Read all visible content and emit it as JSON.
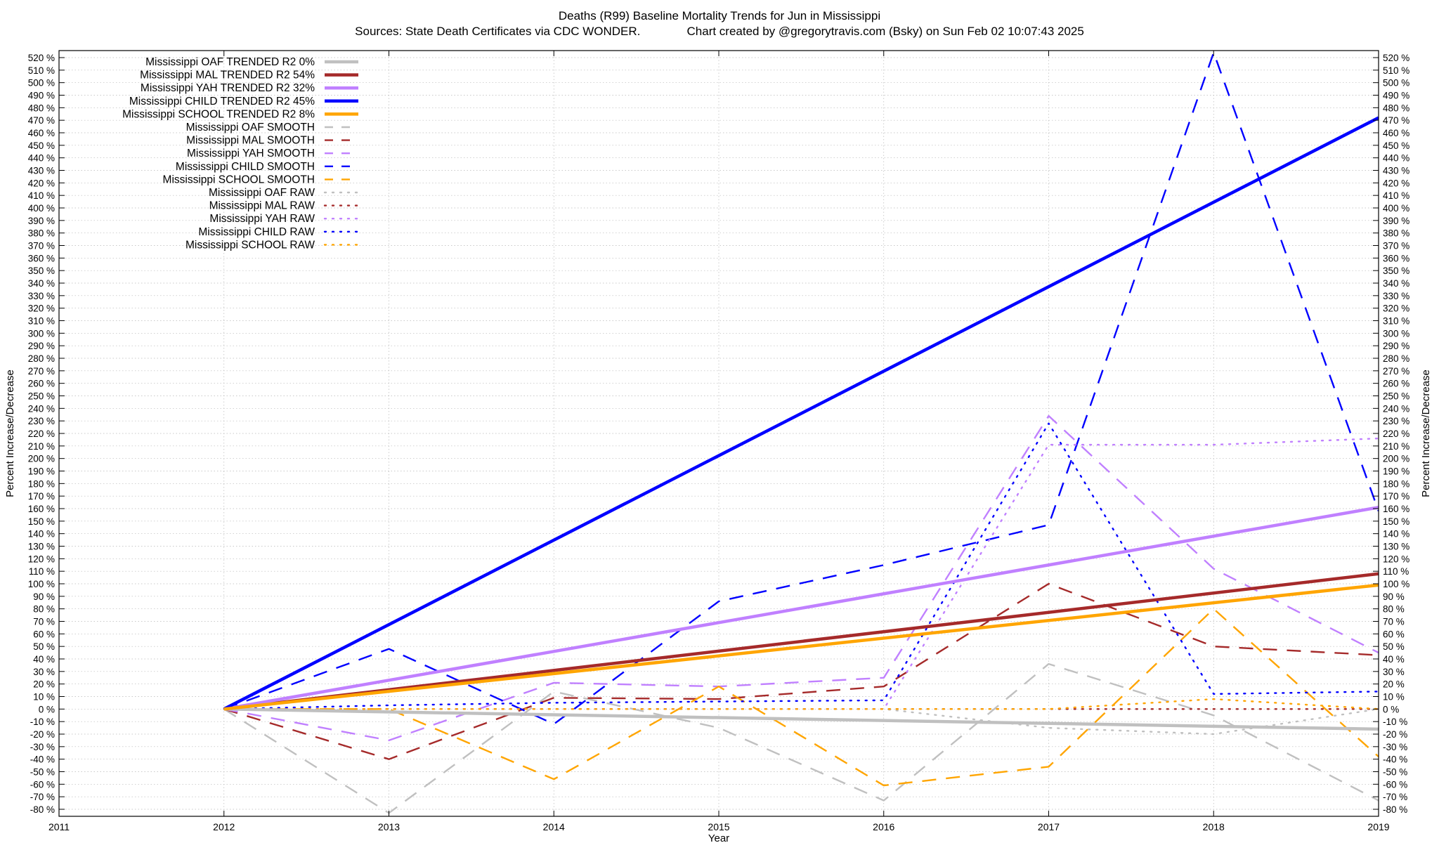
{
  "chart_data": {
    "type": "line",
    "title": "Deaths (R99)  Baseline Mortality Trends for Jun in Mississippi",
    "subtitle": "Sources: State Death Certificates via CDC WONDER.              Chart created by @gregorytravis.com (Bsky) on Sun Feb 02 10:07:43 2025",
    "xlabel": "Year",
    "ylabel": "Percent Increase/Decrease",
    "ylabel_right": "Percent Increase/Decrease",
    "xlim": [
      2011,
      2019
    ],
    "ylim": [
      -80,
      520
    ],
    "x_ticks": [
      2011,
      2012,
      2013,
      2014,
      2015,
      2016,
      2017,
      2018,
      2019
    ],
    "y_tick_step": 10,
    "y_tick_suffix": " %",
    "grid": true,
    "legend_position": "top-left",
    "series": [
      {
        "name": "Mississippi OAF TRENDED R2  0%",
        "style": "solid",
        "color": "#c0c0c0",
        "x": [
          2012,
          2019
        ],
        "y": [
          0,
          -16
        ]
      },
      {
        "name": "Mississippi MAL TRENDED R2  54%",
        "style": "solid",
        "color": "#a52a2a",
        "x": [
          2012,
          2019
        ],
        "y": [
          0,
          108
        ]
      },
      {
        "name": "Mississippi YAH TRENDED R2  32%",
        "style": "solid",
        "color": "#c080ff",
        "x": [
          2012,
          2019
        ],
        "y": [
          0,
          161
        ]
      },
      {
        "name": "Mississippi CHILD TRENDED R2  45%",
        "style": "solid",
        "color": "#0000ff",
        "x": [
          2012,
          2019
        ],
        "y": [
          0,
          472
        ]
      },
      {
        "name": "Mississippi SCHOOL TRENDED R2  8%",
        "style": "solid",
        "color": "#ffa500",
        "x": [
          2012,
          2019
        ],
        "y": [
          0,
          99
        ]
      },
      {
        "name": "Mississippi OAF SMOOTH",
        "style": "dashed",
        "color": "#c0c0c0",
        "x": [
          2012,
          2013,
          2014,
          2015,
          2016,
          2017,
          2018,
          2019
        ],
        "y": [
          0,
          -83,
          14,
          -15,
          -73,
          36,
          -5,
          -73
        ]
      },
      {
        "name": "Mississippi MAL SMOOTH",
        "style": "dashed",
        "color": "#a52a2a",
        "x": [
          2012,
          2013,
          2014,
          2015,
          2016,
          2017,
          2018,
          2019
        ],
        "y": [
          0,
          -40,
          9,
          8,
          18,
          100,
          50,
          43
        ]
      },
      {
        "name": "Mississippi YAH SMOOTH",
        "style": "dashed",
        "color": "#c080ff",
        "x": [
          2012,
          2013,
          2014,
          2015,
          2016,
          2017,
          2018,
          2019
        ],
        "y": [
          0,
          -25,
          21,
          18,
          25,
          234,
          112,
          45
        ]
      },
      {
        "name": "Mississippi CHILD SMOOTH",
        "style": "dashed",
        "color": "#0000ff",
        "x": [
          2012,
          2013,
          2014,
          2015,
          2016,
          2017,
          2018,
          2019
        ],
        "y": [
          0,
          48,
          -12,
          86,
          115,
          147,
          524,
          158
        ]
      },
      {
        "name": "Mississippi SCHOOL SMOOTH",
        "style": "dashed",
        "color": "#ffa500",
        "x": [
          2012,
          2013,
          2014,
          2015,
          2016,
          2017,
          2018,
          2019
        ],
        "y": [
          0,
          0,
          -56,
          18,
          -61,
          -46,
          80,
          -38
        ]
      },
      {
        "name": "Mississippi OAF RAW",
        "style": "dotted",
        "color": "#c0c0c0",
        "x": [
          2012,
          2013,
          2014,
          2015,
          2016,
          2017,
          2018,
          2019
        ],
        "y": [
          0,
          0,
          0,
          0,
          0,
          -15,
          -20,
          0
        ]
      },
      {
        "name": "Mississippi MAL RAW",
        "style": "dotted",
        "color": "#a52a2a",
        "x": [
          2012,
          2013,
          2014,
          2015,
          2016,
          2017,
          2018,
          2019
        ],
        "y": [
          0,
          0,
          0,
          0,
          0,
          0,
          0,
          0
        ]
      },
      {
        "name": "Mississippi YAH RAW",
        "style": "dotted",
        "color": "#c080ff",
        "x": [
          2012,
          2013,
          2014,
          2015,
          2016,
          2017,
          2018,
          2019
        ],
        "y": [
          0,
          0,
          0,
          0,
          0,
          211,
          211,
          216
        ]
      },
      {
        "name": "Mississippi CHILD RAW",
        "style": "dotted",
        "color": "#0000ff",
        "x": [
          2012,
          2013,
          2014,
          2015,
          2016,
          2017,
          2018,
          2019
        ],
        "y": [
          0,
          3,
          5,
          6,
          7,
          228,
          12,
          14
        ]
      },
      {
        "name": "Mississippi SCHOOL RAW",
        "style": "dotted",
        "color": "#ffa500",
        "x": [
          2012,
          2013,
          2014,
          2015,
          2016,
          2017,
          2018,
          2019
        ],
        "y": [
          0,
          0,
          0,
          0,
          0,
          0,
          8,
          0
        ]
      }
    ]
  }
}
